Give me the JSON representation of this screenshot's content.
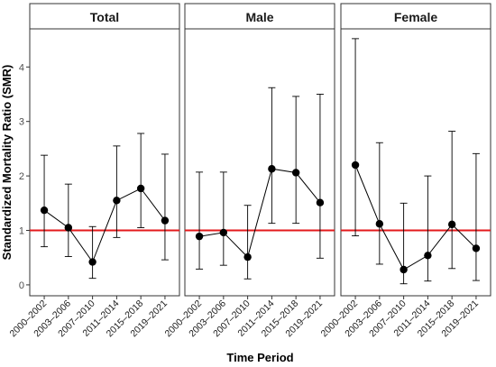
{
  "chart_data": {
    "type": "line",
    "xlabel": "Time Period",
    "ylabel": "Standardized Mortality Ratio (SMR)",
    "ylim": [
      -0.2,
      4.7
    ],
    "yticks": [
      0,
      1,
      2,
      3,
      4
    ],
    "reference_line": {
      "y": 1,
      "color": "#e31a1c"
    },
    "categories": [
      "2000–2002",
      "2003–2006",
      "2007–2010",
      "2011–2014",
      "2015–2018",
      "2019–2021"
    ],
    "panels": [
      {
        "title": "Total",
        "values": [
          1.37,
          1.05,
          0.42,
          1.55,
          1.77,
          1.18
        ],
        "lower": [
          0.7,
          0.52,
          0.12,
          0.87,
          1.05,
          0.46
        ],
        "upper": [
          2.38,
          1.85,
          1.07,
          2.55,
          2.78,
          2.4
        ]
      },
      {
        "title": "Male",
        "values": [
          0.89,
          0.96,
          0.51,
          2.13,
          2.06,
          1.51
        ],
        "lower": [
          0.29,
          0.36,
          0.11,
          1.13,
          1.13,
          0.49
        ],
        "upper": [
          2.07,
          2.07,
          1.46,
          3.62,
          3.46,
          3.5
        ]
      },
      {
        "title": "Female",
        "values": [
          2.2,
          1.12,
          0.28,
          0.54,
          1.11,
          0.67
        ],
        "lower": [
          0.9,
          0.38,
          0.02,
          0.07,
          0.3,
          0.08
        ],
        "upper": [
          4.52,
          2.61,
          1.5,
          2.0,
          2.82,
          2.41
        ]
      }
    ]
  }
}
